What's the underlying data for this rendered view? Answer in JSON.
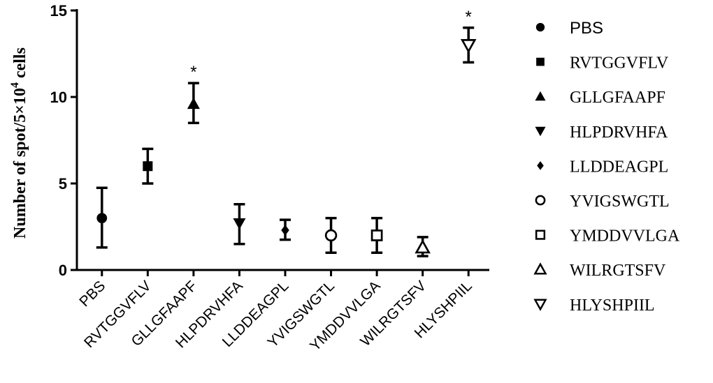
{
  "chart_data": {
    "type": "scatter",
    "ylabel_main": "Number of spot/5×10",
    "ylabel_sup": "4",
    "ylabel_tail": " cells",
    "ylim": [
      0,
      15
    ],
    "yticks": [
      0,
      5,
      10,
      15
    ],
    "grid": false,
    "legend_position": "right",
    "categories": [
      "PBS",
      "RVTGGVFLV",
      "GLLGFAAPF",
      "HLPDRVHFA",
      "LLDDEAGPL",
      "YVIGSWGTL",
      "YMDDVVLGA",
      "WILRGTSFV",
      "HLYSHPIIL"
    ],
    "series": [
      {
        "name": "PBS",
        "marker": "filled-circle",
        "mean": 3.0,
        "low": 1.3,
        "high": 4.75,
        "annotation": ""
      },
      {
        "name": "RVTGGVFLV",
        "marker": "filled-square",
        "mean": 6.0,
        "low": 5.0,
        "high": 7.0,
        "annotation": ""
      },
      {
        "name": "GLLGFAAPF",
        "marker": "filled-triangle-up",
        "mean": 9.6,
        "low": 8.5,
        "high": 10.8,
        "annotation": "*"
      },
      {
        "name": "HLPDRVHFA",
        "marker": "filled-triangle-down",
        "mean": 2.7,
        "low": 1.5,
        "high": 3.8,
        "annotation": ""
      },
      {
        "name": "LLDDEAGPL",
        "marker": "filled-diamond",
        "mean": 2.3,
        "low": 1.75,
        "high": 2.9,
        "annotation": ""
      },
      {
        "name": "YVIGSWGTL",
        "marker": "open-circle",
        "mean": 2.0,
        "low": 1.0,
        "high": 3.0,
        "annotation": ""
      },
      {
        "name": "YMDDVVLGA",
        "marker": "open-square",
        "mean": 2.0,
        "low": 1.0,
        "high": 3.0,
        "annotation": ""
      },
      {
        "name": "WILRGTSFV",
        "marker": "open-triangle-up",
        "mean": 1.3,
        "low": 0.8,
        "high": 1.9,
        "annotation": ""
      },
      {
        "name": "HLYSHPIIL",
        "marker": "open-triangle-down",
        "mean": 13.0,
        "low": 12.0,
        "high": 14.0,
        "annotation": "*"
      }
    ],
    "legend": [
      {
        "label": "PBS",
        "marker": "filled-circle"
      },
      {
        "label": "RVTGGVFLV",
        "marker": "filled-square"
      },
      {
        "label": "GLLGFAAPF",
        "marker": "filled-triangle-up"
      },
      {
        "label": "HLPDRVHFA",
        "marker": "filled-triangle-down"
      },
      {
        "label": "LLDDEAGPL",
        "marker": "filled-diamond"
      },
      {
        "label": "YVIGSWGTL",
        "marker": "open-circle"
      },
      {
        "label": "YMDDVVLGA",
        "marker": "open-square"
      },
      {
        "label": "WILRGTSFV",
        "marker": "open-triangle-up"
      },
      {
        "label": "HLYSHPIIL",
        "marker": "open-triangle-down"
      }
    ],
    "colors": {
      "ink": "#000000",
      "background": "#ffffff"
    }
  }
}
